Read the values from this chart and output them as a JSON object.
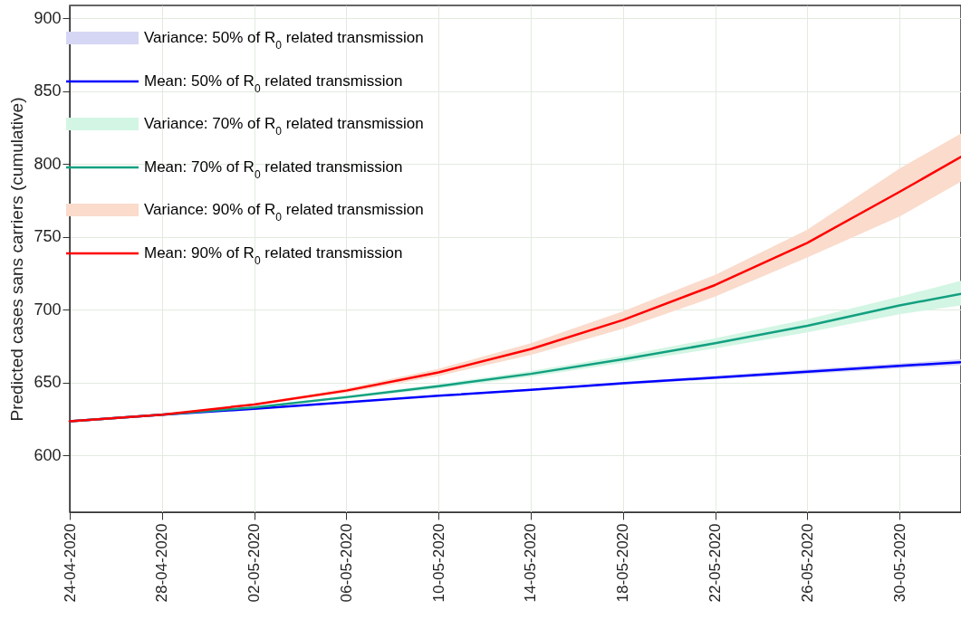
{
  "chart_data": {
    "type": "line",
    "ylabel": "Predicted cases sans carriers (cumulative)",
    "grid": true,
    "legend": "top left",
    "x": [
      "2020-04-24",
      "2020-04-28",
      "2020-05-02",
      "2020-05-06",
      "2020-05-10",
      "2020-05-14",
      "2020-05-18",
      "2020-05-22",
      "2020-05-26",
      "2020-05-30",
      "2020-06-01T16:00"
    ],
    "xlim": [
      "2020-04-24",
      "2020-06-01T16:00"
    ],
    "xticks": [
      {
        "value": "2020-04-24",
        "label": "24-04-2020"
      },
      {
        "value": "2020-04-28",
        "label": "28-04-2020"
      },
      {
        "value": "2020-05-02",
        "label": "02-05-2020"
      },
      {
        "value": "2020-05-06",
        "label": "06-05-2020"
      },
      {
        "value": "2020-05-10",
        "label": "10-05-2020"
      },
      {
        "value": "2020-05-14",
        "label": "14-05-2020"
      },
      {
        "value": "2020-05-18",
        "label": "18-05-2020"
      },
      {
        "value": "2020-05-22",
        "label": "22-05-2020"
      },
      {
        "value": "2020-05-26",
        "label": "26-05-2020"
      },
      {
        "value": "2020-05-30",
        "label": "30-05-2020"
      }
    ],
    "ylim": [
      561,
      909
    ],
    "yticks": [
      600,
      650,
      700,
      750,
      800,
      850,
      900
    ],
    "series": [
      {
        "type": "area",
        "name": "Variance: 50% of R$_{0}$ related transmission",
        "color": "#d6d6f5",
        "values": [
          null,
          null,
          null,
          null,
          null,
          null,
          null,
          null,
          null,
          null,
          null
        ],
        "lower": [
          623.5,
          627.9,
          631.8,
          636.2,
          640.5,
          644.3,
          648.5,
          652.3,
          656,
          659.8,
          662
        ],
        "upper": [
          623.5,
          628.1,
          632.2,
          636.8,
          641.5,
          645.7,
          650.5,
          654.7,
          659,
          663.2,
          666
        ]
      },
      {
        "name": "Mean: 50% of R$_{0}$ related transmission",
        "color": "#0000ff",
        "values": [
          623.5,
          628,
          632,
          636.5,
          641,
          645,
          649.5,
          653.5,
          657.5,
          661.5,
          664
        ]
      },
      {
        "type": "area",
        "name": "Variance: 70% of R$_{0}$ related transmission",
        "color": "#d3f5e4",
        "values": [
          null,
          null,
          null,
          null,
          null,
          null,
          null,
          null,
          null,
          null,
          null
        ],
        "lower": [
          623.5,
          627.8,
          632.5,
          639,
          646,
          654,
          663.5,
          673.5,
          684.5,
          697,
          703
        ],
        "upper": [
          623.5,
          628.2,
          633.5,
          641,
          649,
          658,
          668.5,
          680.5,
          693.5,
          709,
          720
        ]
      },
      {
        "name": "Mean: 70% of R$_{0}$ related transmission",
        "color": "#12a080",
        "values": [
          623.5,
          628,
          633,
          640,
          647.5,
          656,
          666,
          677,
          689,
          703,
          711
        ]
      },
      {
        "type": "area",
        "name": "Variance: 90% of R$_{0}$ related transmission",
        "color": "#fadbcc",
        "values": [
          null,
          null,
          null,
          null,
          null,
          null,
          null,
          null,
          null,
          null,
          null
        ],
        "lower": [
          623.5,
          627.7,
          634.3,
          643,
          654.5,
          669,
          687,
          709,
          736,
          764,
          788
        ],
        "upper": [
          623.5,
          628.3,
          635.7,
          646,
          659.5,
          677,
          699,
          724,
          755,
          797,
          821
        ]
      },
      {
        "name": "Mean: 90% of R$_{0}$ related transmission",
        "color": "#ff0000",
        "values": [
          623.5,
          628,
          635,
          644.5,
          657,
          673,
          693,
          717,
          746,
          781,
          805
        ]
      }
    ]
  }
}
